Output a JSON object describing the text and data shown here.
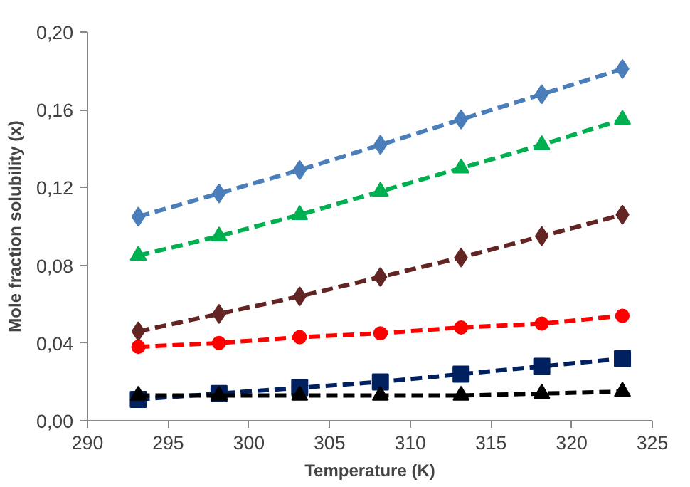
{
  "chart_data": {
    "type": "line",
    "xlabel": "Temperature (K)",
    "ylabel": "Mole fraction solubility (x)",
    "x": [
      293.15,
      298.15,
      303.15,
      308.15,
      313.15,
      318.15,
      323.15
    ],
    "xlim": [
      290,
      325
    ],
    "xticks": [
      290,
      295,
      300,
      305,
      310,
      315,
      320,
      325
    ],
    "ylim": [
      0,
      0.2
    ],
    "yticks": [
      {
        "value": 0,
        "label": "0,00"
      },
      {
        "value": 0.04,
        "label": "0,04"
      },
      {
        "value": 0.08,
        "label": "0,08"
      },
      {
        "value": 0.12,
        "label": "0,12"
      },
      {
        "value": 0.16,
        "label": "0,16"
      },
      {
        "value": 0.2,
        "label": "0,20"
      }
    ],
    "grid": false,
    "line_style": "dashed",
    "series": [
      {
        "color": "#4a7ebb",
        "marker": "diamond",
        "values": [
          0.105,
          0.117,
          0.129,
          0.142,
          0.155,
          0.168,
          0.181
        ]
      },
      {
        "color": "#00b050",
        "marker": "triangle",
        "values": [
          0.085,
          0.095,
          0.106,
          0.118,
          0.13,
          0.142,
          0.155
        ]
      },
      {
        "color": "#632523",
        "marker": "diamond",
        "values": [
          0.046,
          0.055,
          0.064,
          0.074,
          0.084,
          0.095,
          0.106
        ]
      },
      {
        "color": "#ff0000",
        "marker": "circle",
        "values": [
          0.038,
          0.04,
          0.043,
          0.045,
          0.048,
          0.05,
          0.054
        ]
      },
      {
        "color": "#002060",
        "marker": "square",
        "values": [
          0.011,
          0.014,
          0.017,
          0.02,
          0.024,
          0.028,
          0.032
        ]
      },
      {
        "color": "#000000",
        "marker": "triangle",
        "values": [
          0.013,
          0.013,
          0.013,
          0.013,
          0.013,
          0.014,
          0.015
        ]
      }
    ]
  }
}
